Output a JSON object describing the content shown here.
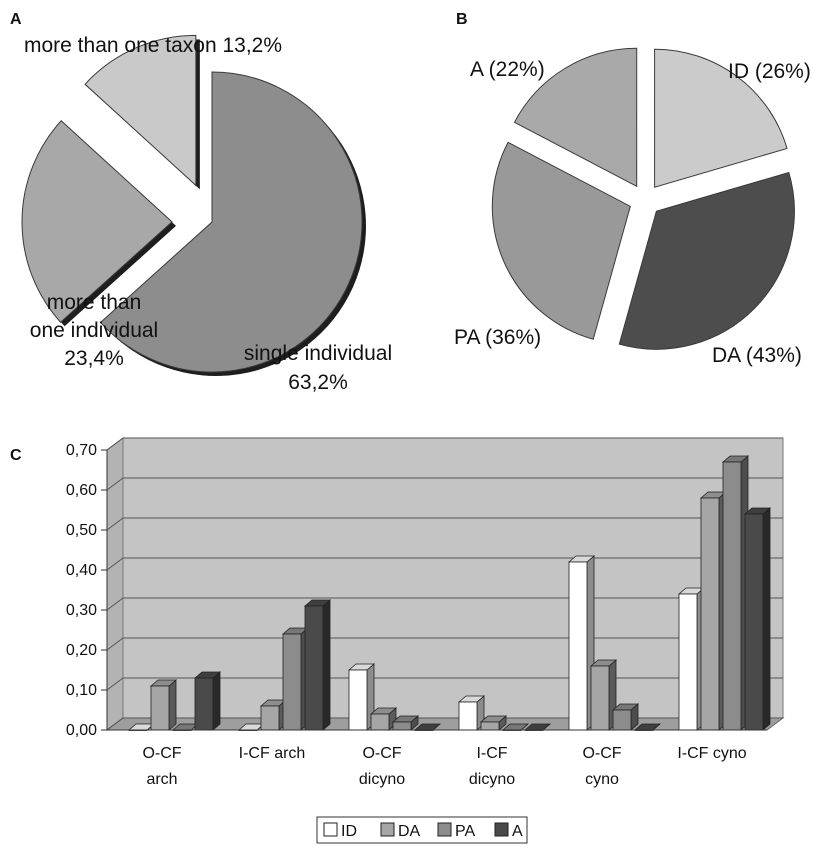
{
  "panels": {
    "a": {
      "letter": "A",
      "labels": {
        "multi_taxon": [
          "more than one taxon 13,2%"
        ],
        "multi_individual": [
          "more than",
          "one individual",
          "23,4%"
        ],
        "single_individual": [
          "single individual",
          "63,2%"
        ]
      }
    },
    "b": {
      "letter": "B",
      "labels": {
        "ID": "ID (26%)",
        "DA": "DA (43%)",
        "PA": "PA (36%)",
        "A": "A (22%)"
      }
    },
    "c": {
      "letter": "C"
    }
  },
  "chart_data": [
    {
      "type": "pie",
      "panel": "A",
      "labels": [
        "single individual",
        "more than one individual",
        "more than one taxon"
      ],
      "values": [
        63.2,
        23.4,
        13.2
      ],
      "colors": [
        "#8d8d8d",
        "#a8a8a8",
        "#c9c9c9"
      ],
      "exploded": true
    },
    {
      "type": "pie",
      "panel": "B",
      "labels": [
        "ID",
        "DA",
        "PA",
        "A"
      ],
      "values": [
        26,
        43,
        36,
        22
      ],
      "colors": [
        "#cbcbcb",
        "#4d4d4d",
        "#999999",
        "#a9a9a9"
      ],
      "exploded": true
    },
    {
      "type": "bar",
      "panel": "C",
      "categories": [
        [
          "O-CF",
          "arch"
        ],
        [
          "I-CF arch"
        ],
        [
          "O-CF",
          "dicyno"
        ],
        [
          "I-CF",
          "dicyno"
        ],
        [
          "O-CF",
          "cyno"
        ],
        [
          "I-CF cyno"
        ]
      ],
      "series": [
        {
          "name": "ID",
          "values": [
            0.0,
            0.0,
            0.15,
            0.07,
            0.42,
            0.34
          ],
          "color": "#ffffff"
        },
        {
          "name": "DA",
          "values": [
            0.11,
            0.06,
            0.04,
            0.02,
            0.16,
            0.58
          ],
          "color": "#a6a6a6"
        },
        {
          "name": "PA",
          "values": [
            0.0,
            0.24,
            0.02,
            0.0,
            0.05,
            0.67
          ],
          "color": "#8c8c8c"
        },
        {
          "name": "A",
          "values": [
            0.13,
            0.31,
            0.0,
            0.0,
            0.0,
            0.54
          ],
          "color": "#4a4a4a"
        }
      ],
      "yticks": [
        "0,00",
        "0,10",
        "0,20",
        "0,30",
        "0,40",
        "0,50",
        "0,60",
        "0,70"
      ],
      "ylim": [
        0,
        0.7
      ],
      "grid": true,
      "legend": "bottom",
      "style": "3d"
    }
  ]
}
